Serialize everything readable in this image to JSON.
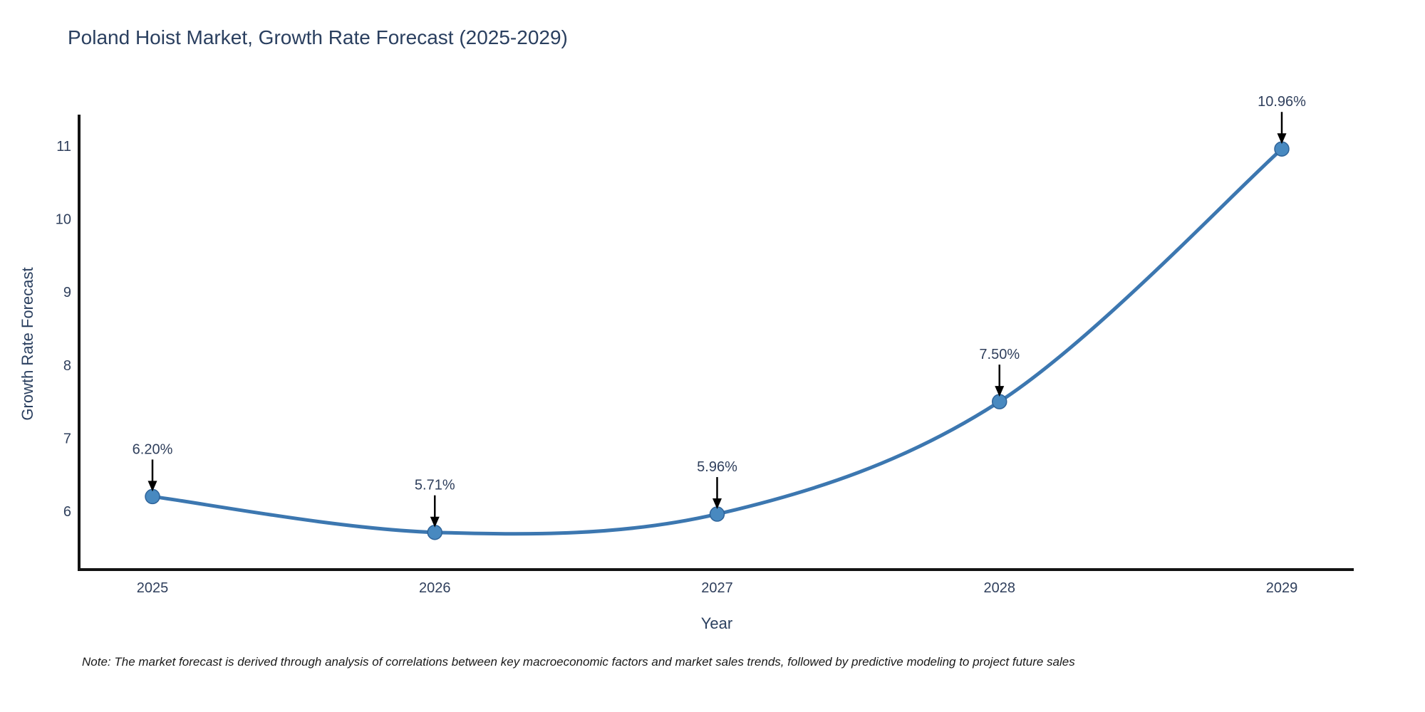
{
  "title": "Poland Hoist Market, Growth Rate Forecast (2025-2029)",
  "note": "Note: The market forecast is derived through analysis of correlations between key macroeconomic factors and market sales trends, followed by predictive modeling to project future sales",
  "chart_data": {
    "type": "line",
    "title": "Poland Hoist Market, Growth Rate Forecast (2025-2029)",
    "xlabel": "Year",
    "ylabel": "Growth Rate Forecast",
    "categories": [
      "2025",
      "2026",
      "2027",
      "2028",
      "2029"
    ],
    "values": [
      6.2,
      5.71,
      5.96,
      7.5,
      10.96
    ],
    "point_labels": [
      "6.20%",
      "5.71%",
      "5.96%",
      "7.50%",
      "10.96%"
    ],
    "series": [
      {
        "name": "Growth Rate Forecast",
        "values": [
          6.2,
          5.71,
          5.96,
          7.5,
          10.96
        ]
      }
    ],
    "yticks": [
      6,
      7,
      8,
      9,
      10,
      11
    ],
    "ylim": [
      5.2,
      11.43
    ],
    "line_shape": "spline",
    "grid": false,
    "legend": "none",
    "colors": {
      "line": "#3c77b0",
      "marker_fill": "#4889c0",
      "marker_stroke": "#2e6399",
      "axis": "#131313",
      "tick_text": "#2f3f5c",
      "title_text": "#2a3f5f",
      "annotation_arrow": "#000000"
    }
  }
}
